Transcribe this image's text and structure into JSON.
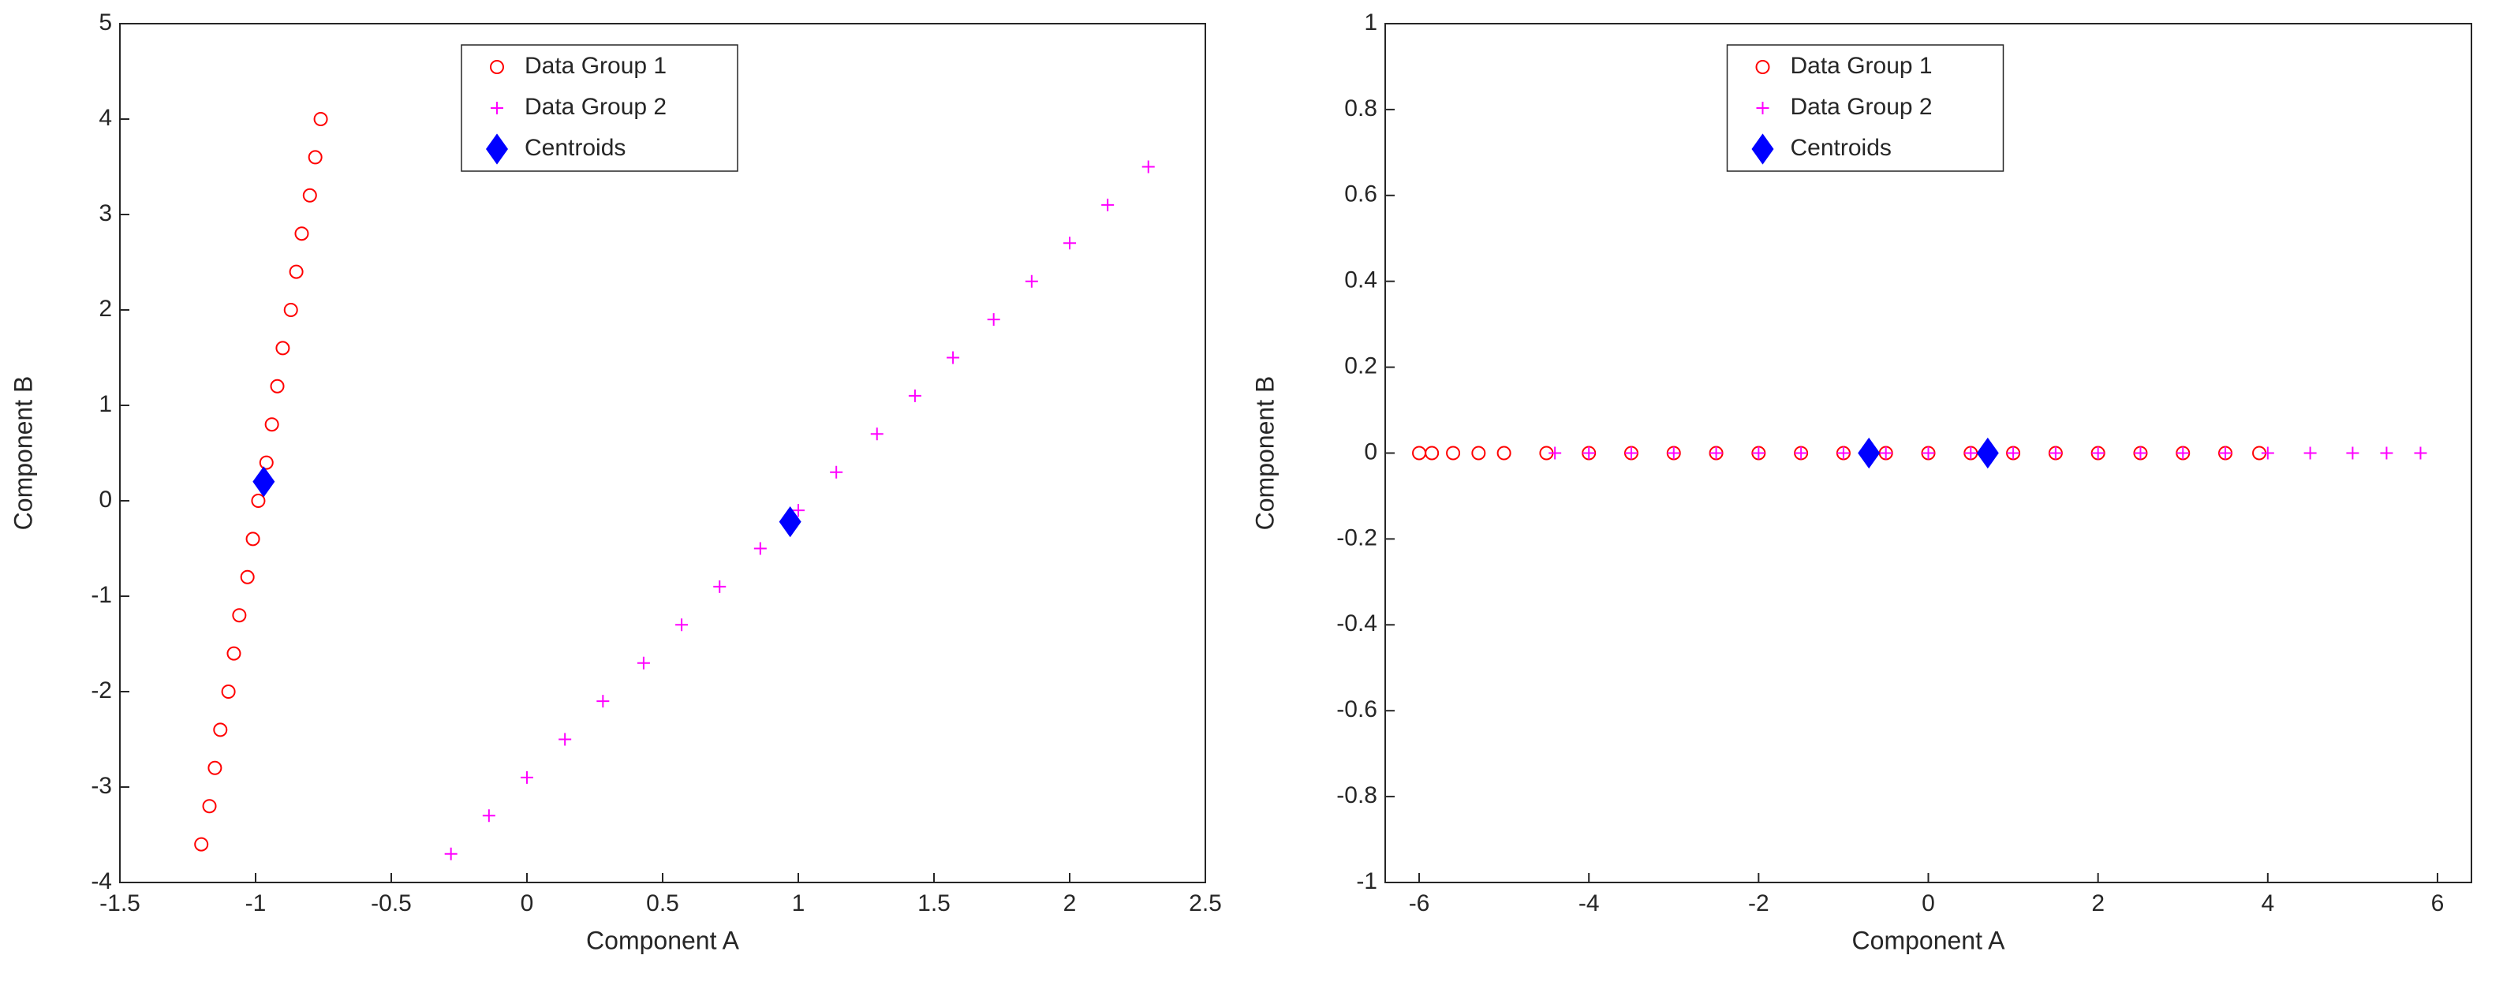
{
  "chart_data": [
    {
      "type": "scatter",
      "xlabel": "Component A",
      "ylabel": "Component B",
      "xlim": [
        -1.5,
        2.5
      ],
      "ylim": [
        -4,
        5
      ],
      "xticks": [
        -1.5,
        -1,
        -0.5,
        0,
        0.5,
        1,
        1.5,
        2,
        2.5
      ],
      "yticks": [
        -4,
        -3,
        -2,
        -1,
        0,
        1,
        2,
        3,
        4,
        5
      ],
      "legend": "upper-center",
      "series": [
        {
          "name": "Data Group 1",
          "color": "#ff0000",
          "marker": "circle",
          "x": [
            -1.2,
            -1.17,
            -1.15,
            -1.13,
            -1.1,
            -1.08,
            -1.06,
            -1.03,
            -1.01,
            -0.99,
            -0.96,
            -0.94,
            -0.92,
            -0.9,
            -0.87,
            -0.85,
            -0.83,
            -0.8,
            -0.78,
            -0.76
          ],
          "y": [
            -3.6,
            -3.2,
            -2.8,
            -2.4,
            -2,
            -1.6,
            -1.2,
            -0.8,
            -0.4,
            0,
            0.4,
            0.8,
            1.2,
            1.6,
            2,
            2.4,
            2.8,
            3.2,
            3.6,
            4.0
          ]
        },
        {
          "name": "Data Group 2",
          "color": "#ff00ff",
          "marker": "plus",
          "x": [
            -0.28,
            -0.14,
            0.0,
            0.14,
            0.28,
            0.43,
            0.57,
            0.71,
            0.86,
            1.0,
            1.14,
            1.29,
            1.43,
            1.57,
            1.72,
            1.86,
            2.0,
            2.14,
            2.29
          ],
          "y": [
            -3.7,
            -3.3,
            -2.9,
            -2.5,
            -2.1,
            -1.7,
            -1.3,
            -0.9,
            -0.5,
            -0.1,
            0.3,
            0.7,
            1.1,
            1.5,
            1.9,
            2.3,
            2.7,
            3.1,
            3.5
          ]
        },
        {
          "name": "Centroids",
          "color": "#0000ff",
          "marker": "diamond",
          "x": [
            -0.97,
            0.97
          ],
          "y": [
            0.2,
            -0.22
          ]
        }
      ]
    },
    {
      "type": "scatter",
      "xlabel": "Component A",
      "ylabel": "Component B",
      "xlim": [
        -6.4,
        6.4
      ],
      "ylim": [
        -1,
        1
      ],
      "xticks": [
        -6,
        -4,
        -2,
        0,
        2,
        4,
        6
      ],
      "yticks": [
        -1,
        -0.8,
        -0.6,
        -0.4,
        -0.2,
        0,
        0.2,
        0.4,
        0.6,
        0.8,
        1
      ],
      "legend": "upper-center",
      "series": [
        {
          "name": "Data Group 1",
          "color": "#ff0000",
          "marker": "circle",
          "x": [
            -6,
            -5.85,
            -5.6,
            -5.3,
            -5,
            -4.5,
            -4,
            -3.5,
            -3,
            -2.5,
            -2,
            -1.5,
            -1,
            -0.5,
            0,
            0.5,
            1,
            1.5,
            2,
            2.5,
            3,
            3.5,
            3.9
          ],
          "y": [
            0,
            0,
            0,
            0,
            0,
            0,
            0,
            0,
            0,
            0,
            0,
            0,
            0,
            0,
            0,
            0,
            0,
            0,
            0,
            0,
            0,
            0,
            0
          ]
        },
        {
          "name": "Data Group 2",
          "color": "#ff00ff",
          "marker": "plus",
          "x": [
            -4.4,
            -4,
            -3.5,
            -3,
            -2.5,
            -2,
            -1.5,
            -1,
            -0.5,
            0,
            0.5,
            1,
            1.5,
            2,
            2.5,
            3,
            3.5,
            4,
            4.5,
            5,
            5.4,
            5.8
          ],
          "y": [
            0,
            0,
            0,
            0,
            0,
            0,
            0,
            0,
            0,
            0,
            0,
            0,
            0,
            0,
            0,
            0,
            0,
            0,
            0,
            0,
            0,
            0
          ]
        },
        {
          "name": "Centroids",
          "color": "#0000ff",
          "marker": "diamond",
          "x": [
            -0.7,
            0.7
          ],
          "y": [
            0,
            0
          ]
        }
      ]
    }
  ]
}
